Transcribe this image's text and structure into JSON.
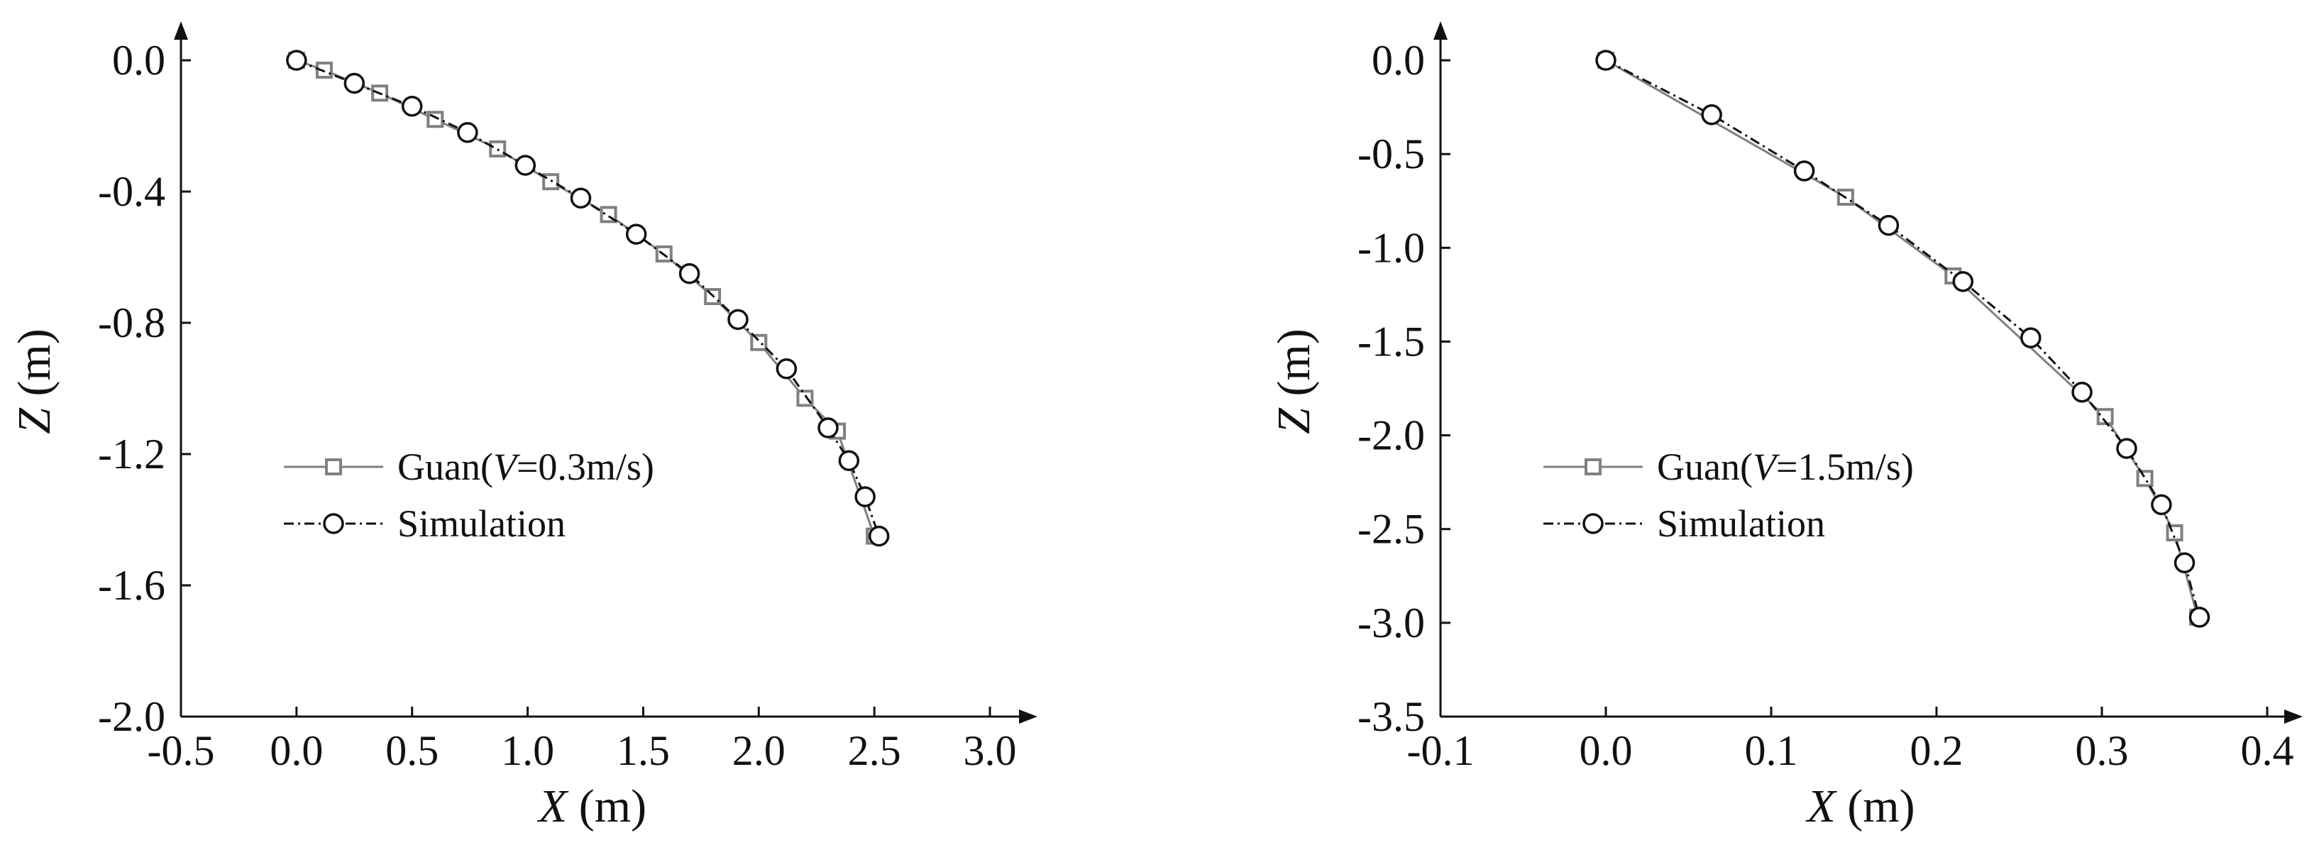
{
  "chart_data": [
    {
      "type": "scatter",
      "xlabel": {
        "symbol": "X",
        "unit": " (m)"
      },
      "ylabel": {
        "symbol": "Z",
        "unit": " (m)"
      },
      "xlim": [
        -0.5,
        3.0
      ],
      "ylim": [
        -2.0,
        0.0
      ],
      "xticks": [
        -0.5,
        0.0,
        0.5,
        1.0,
        1.5,
        2.0,
        2.5,
        3.0
      ],
      "xtick_labels": [
        "-0.5",
        "0.0",
        "0.5",
        "1.0",
        "1.5",
        "2.0",
        "2.5",
        "3.0"
      ],
      "yticks": [
        0.0,
        -0.4,
        -0.8,
        -1.2,
        -1.6,
        -2.0
      ],
      "ytick_labels": [
        "0.0",
        "-0.4",
        "-0.8",
        "-1.2",
        "-1.6",
        "-2.0"
      ],
      "grid": false,
      "legend_position": "lower-left",
      "series": [
        {
          "name": "Guan(V=0.3m/s)",
          "legend": {
            "pre": "Guan(",
            "var": "V",
            "post": "=0.3m/s)"
          },
          "marker": "square",
          "line": "solid",
          "color": "#808080",
          "x": [
            0.0,
            0.12,
            0.36,
            0.6,
            0.87,
            1.1,
            1.35,
            1.59,
            1.8,
            2.0,
            2.2,
            2.34,
            2.5
          ],
          "y": [
            0.0,
            -0.03,
            -0.1,
            -0.18,
            -0.27,
            -0.37,
            -0.47,
            -0.59,
            -0.72,
            -0.86,
            -1.03,
            -1.13,
            -1.45
          ]
        },
        {
          "name": "Simulation",
          "legend": {
            "pre": "Simulation",
            "var": "",
            "post": ""
          },
          "marker": "circle",
          "line": "dashdot",
          "color": "#111111",
          "x": [
            0.0,
            0.25,
            0.5,
            0.74,
            0.99,
            1.23,
            1.47,
            1.7,
            1.91,
            2.12,
            2.3,
            2.39,
            2.46,
            2.52
          ],
          "y": [
            0.0,
            -0.07,
            -0.14,
            -0.22,
            -0.32,
            -0.42,
            -0.53,
            -0.65,
            -0.79,
            -0.94,
            -1.12,
            -1.22,
            -1.33,
            -1.45
          ]
        }
      ]
    },
    {
      "type": "scatter",
      "xlabel": {
        "symbol": "X",
        "unit": " (m)"
      },
      "ylabel": {
        "symbol": "Z",
        "unit": " (m)"
      },
      "xlim": [
        -0.1,
        0.4
      ],
      "ylim": [
        -3.5,
        0.0
      ],
      "xticks": [
        -0.1,
        0.0,
        0.1,
        0.2,
        0.3,
        0.4
      ],
      "xtick_labels": [
        "-0.1",
        "0.0",
        "0.1",
        "0.2",
        "0.3",
        "0.4"
      ],
      "yticks": [
        0.0,
        -0.5,
        -1.0,
        -1.5,
        -2.0,
        -2.5,
        -3.0,
        -3.5
      ],
      "ytick_labels": [
        "0.0",
        "-0.5",
        "-1.0",
        "-1.5",
        "-2.0",
        "-2.5",
        "-3.0",
        "-3.5"
      ],
      "grid": false,
      "legend_position": "lower-left",
      "series": [
        {
          "name": "Guan(V=1.5m/s)",
          "legend": {
            "pre": "Guan(",
            "var": "V",
            "post": "=1.5m/s)"
          },
          "marker": "square",
          "line": "solid",
          "color": "#808080",
          "x": [
            0.0,
            0.145,
            0.21,
            0.302,
            0.326,
            0.344,
            0.358
          ],
          "y": [
            0.0,
            -0.73,
            -1.15,
            -1.9,
            -2.23,
            -2.52,
            -2.97
          ]
        },
        {
          "name": "Simulation",
          "legend": {
            "pre": "Simulation",
            "var": "",
            "post": ""
          },
          "marker": "circle",
          "line": "dashdot",
          "color": "#111111",
          "x": [
            0.0,
            0.064,
            0.12,
            0.171,
            0.216,
            0.257,
            0.288,
            0.315,
            0.336,
            0.35,
            0.359
          ],
          "y": [
            0.0,
            -0.29,
            -0.59,
            -0.88,
            -1.18,
            -1.48,
            -1.77,
            -2.07,
            -2.37,
            -2.68,
            -2.97
          ]
        }
      ]
    }
  ]
}
